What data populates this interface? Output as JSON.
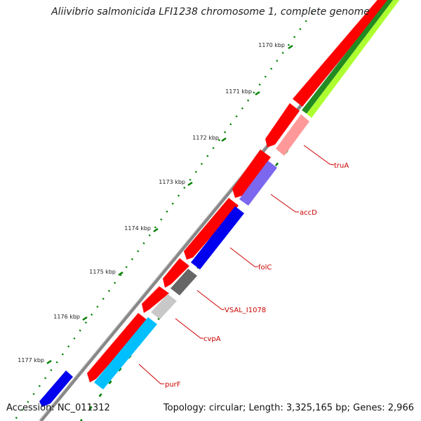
{
  "title": "Aliivibrio salmonicida LFI1238 chromosome 1, complete genome",
  "footer": {
    "accession": "Accession: NC_011312",
    "summary": "Topology: circular; Length: 3,325,165 bp; Genes: 2,966"
  },
  "ticks": [
    "1170 kbp",
    "1171 kbp",
    "1172 kbp",
    "1173 kbp",
    "1174 kbp",
    "1175 kbp",
    "1176 kbp",
    "1177 kbp"
  ],
  "genes": [
    {
      "name": "truA",
      "color": "#ff9999"
    },
    {
      "name": "accD",
      "color": "#7b68ee"
    },
    {
      "name": "folC",
      "color": "#0000ee"
    },
    {
      "name": "VSAL_I1078",
      "color": "#666666"
    },
    {
      "name": "cvpA",
      "color": "#c8c8c8"
    },
    {
      "name": "purF",
      "color": "#00bfff"
    }
  ],
  "colors": {
    "backbone": "#888888",
    "cds_forward": "#ff0000",
    "tick": "#008000",
    "label_line": "#cc0000",
    "label_text": "#cc0000",
    "green_dark": "#228b22",
    "green_light": "#adff2f",
    "blue_gene": "#0000ee"
  }
}
